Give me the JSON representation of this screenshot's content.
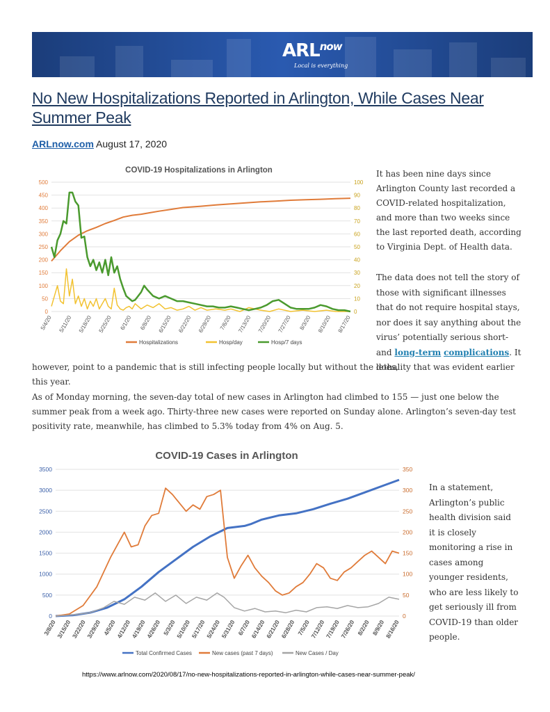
{
  "banner": {
    "logo_arl": "ARL",
    "logo_now": "now",
    "tagline": "Local is everything"
  },
  "article": {
    "title": "No New Hospitalizations Reported in Arlington, While Cases Near Summer Peak",
    "source": "ARLnow.com",
    "date": "August 17, 2020",
    "p1": "It has been nine days since Arlington County last recorded a COVID-related hospitalization, and more than two weeks since the last reported death, according to Virginia Dept. of Health data.",
    "p2_start": "The data does not tell the story of those with significant illnesses that do not require hospital stays, nor does it say anything about the virus’ potentially serious short- and ",
    "p2_link1": "long-term",
    "p2_link2": "complications",
    "p2_mid": ". It does,",
    "p2_cont": "however, point to a pandemic that is still infecting people locally but without the lethality that was evident earlier this year.",
    "p3": "As of Monday morning, the seven-day total of new cases in Arlington had climbed to 155 — just one below the summer peak from a week ago. Thirty-three new cases were reported on Sunday alone. Arlington’s seven-day test positivity rate, meanwhile, has climbed to 5.3% today from 4% on Aug. 5.",
    "p4": "In a statement, Arlington’s public health division said it is closely monitoring a rise in cases among younger residents, who are less likely to get seriously ill from COVID-19 than older people."
  },
  "footer": {
    "url": "https://www.arlnow.com/2020/08/17/no-new-hospitalizations-reported-in-arlington-while-cases-near-summer-peak/"
  },
  "colors": {
    "orange": "#e07b39",
    "yellow": "#f2c230",
    "green": "#4a9a2e",
    "blue": "#4472c4",
    "gray": "#a5a5a5",
    "title_blue": "#1f3a5f"
  },
  "chart_data": [
    {
      "type": "line",
      "title": "COVID-19 Hospitalizations in Arlington",
      "x_ticks": [
        "5/4/20",
        "5/11/20",
        "5/18/20",
        "5/25/20",
        "6/1/20",
        "6/8/20",
        "6/15/20",
        "6/22/20",
        "6/29/20",
        "7/6/20",
        "7/13/20",
        "7/20/20",
        "7/27/20",
        "8/3/20",
        "8/10/20",
        "8/17/20"
      ],
      "ylim_left": [
        0,
        500
      ],
      "ylim_right": [
        0,
        100
      ],
      "y_ticks_left": [
        "0",
        "50",
        "100",
        "150",
        "200",
        "250",
        "300",
        "350",
        "400",
        "450",
        "500"
      ],
      "y_ticks_right": [
        "0",
        "10",
        "20",
        "30",
        "40",
        "50",
        "60",
        "70",
        "80",
        "90",
        "100"
      ],
      "grid": true,
      "legend_position": "bottom",
      "series": [
        {
          "name": "Hospitalizations",
          "axis": "left",
          "color": "#e07b39",
          "x": [
            0,
            3,
            6,
            9,
            12,
            15,
            18,
            21,
            24,
            27,
            30,
            33,
            36,
            40,
            44,
            50,
            55,
            60,
            65,
            70,
            75,
            80,
            85,
            90,
            95,
            100
          ],
          "y": [
            195,
            235,
            270,
            295,
            312,
            325,
            340,
            352,
            365,
            372,
            376,
            382,
            388,
            395,
            402,
            407,
            412,
            416,
            420,
            424,
            427,
            430,
            432,
            434,
            436,
            438
          ]
        },
        {
          "name": "Hosp/day",
          "axis": "right",
          "color": "#f2c230",
          "x": [
            0,
            2,
            3,
            4,
            5,
            6,
            7,
            8,
            9,
            10,
            11,
            12,
            13,
            14,
            15,
            16,
            17,
            18,
            19,
            20,
            21,
            22,
            23,
            24,
            25,
            26,
            27,
            28,
            30,
            32,
            34,
            36,
            38,
            40,
            42,
            44,
            46,
            48,
            50,
            52,
            55,
            58,
            60,
            63,
            66,
            70,
            73,
            76,
            80,
            84,
            88,
            92,
            95,
            98,
            100
          ],
          "y": [
            4,
            20,
            8,
            6,
            33,
            12,
            25,
            6,
            12,
            4,
            10,
            2,
            8,
            4,
            10,
            2,
            6,
            10,
            4,
            2,
            18,
            5,
            2,
            1,
            3,
            4,
            2,
            6,
            2,
            5,
            3,
            6,
            2,
            3,
            1,
            2,
            4,
            1,
            3,
            1,
            2,
            1,
            2,
            0,
            3,
            1,
            0,
            2,
            0,
            1,
            0,
            1,
            0,
            0,
            0
          ]
        },
        {
          "name": "Hosp/7 days",
          "axis": "right",
          "color": "#4a9a2e",
          "x": [
            0,
            1,
            2,
            3,
            4,
            5,
            6,
            7,
            8,
            9,
            10,
            11,
            12,
            13,
            14,
            15,
            16,
            17,
            18,
            19,
            20,
            21,
            22,
            23,
            24,
            25,
            26,
            27,
            28,
            29,
            30,
            31,
            32,
            34,
            36,
            38,
            40,
            42,
            44,
            46,
            48,
            50,
            52,
            54,
            56,
            58,
            60,
            62,
            64,
            66,
            68,
            70,
            72,
            74,
            76,
            78,
            80,
            82,
            84,
            86,
            88,
            90,
            92,
            94,
            96,
            98,
            100
          ],
          "y": [
            50,
            42,
            55,
            60,
            70,
            68,
            92,
            92,
            85,
            82,
            57,
            58,
            42,
            35,
            40,
            32,
            38,
            30,
            40,
            28,
            42,
            30,
            35,
            25,
            18,
            12,
            10,
            8,
            9,
            12,
            15,
            20,
            17,
            12,
            10,
            12,
            10,
            8,
            8,
            7,
            6,
            5,
            4,
            4,
            3,
            3,
            4,
            3,
            2,
            1,
            2,
            3,
            5,
            8,
            9,
            6,
            3,
            2,
            2,
            2,
            3,
            5,
            4,
            2,
            1,
            1,
            0
          ]
        }
      ]
    },
    {
      "type": "line",
      "title": "COVID-19 Cases in Arlington",
      "x_ticks": [
        "3/8/20",
        "3/15/20",
        "3/22/20",
        "3/29/20",
        "4/5/20",
        "4/12/20",
        "4/19/20",
        "4/26/20",
        "5/3/20",
        "5/10/20",
        "5/17/20",
        "5/24/20",
        "5/31/20",
        "6/7/20",
        "6/14/20",
        "6/21/20",
        "6/28/20",
        "7/5/20",
        "7/12/20",
        "7/19/20",
        "7/26/20",
        "8/2/20",
        "8/9/20",
        "8/16/20"
      ],
      "ylim_left": [
        0,
        3500
      ],
      "ylim_right": [
        0,
        350
      ],
      "y_ticks_left": [
        "0",
        "500",
        "1000",
        "1500",
        "2000",
        "2500",
        "3000",
        "3500"
      ],
      "y_ticks_right": [
        "0",
        "50",
        "100",
        "150",
        "200",
        "250",
        "300",
        "350"
      ],
      "grid": true,
      "legend_position": "bottom",
      "series": [
        {
          "name": "Total Confirmed Cases",
          "axis": "left",
          "color": "#4472c4",
          "x": [
            0,
            5,
            10,
            15,
            20,
            25,
            30,
            35,
            40,
            45,
            50,
            55,
            57,
            60,
            65,
            70,
            75,
            80,
            85,
            90,
            95,
            100
          ],
          "y": [
            0,
            20,
            80,
            200,
            400,
            700,
            1050,
            1350,
            1650,
            1900,
            2100,
            2150,
            2200,
            2300,
            2400,
            2450,
            2550,
            2680,
            2800,
            2950,
            3100,
            3250
          ]
        },
        {
          "name": "New cases (past 7 days)",
          "axis": "right",
          "color": "#e07b39",
          "x": [
            0,
            4,
            8,
            12,
            16,
            20,
            22,
            24,
            26,
            28,
            30,
            32,
            34,
            36,
            38,
            40,
            42,
            44,
            46,
            48,
            50,
            52,
            54,
            56,
            58,
            60,
            62,
            64,
            66,
            68,
            70,
            72,
            74,
            76,
            78,
            80,
            82,
            84,
            86,
            88,
            90,
            92,
            94,
            96,
            98,
            100
          ],
          "y": [
            0,
            5,
            25,
            70,
            140,
            200,
            165,
            170,
            215,
            240,
            245,
            305,
            290,
            270,
            250,
            265,
            255,
            285,
            290,
            300,
            140,
            90,
            120,
            145,
            115,
            95,
            80,
            60,
            50,
            55,
            70,
            80,
            100,
            125,
            115,
            90,
            85,
            105,
            115,
            130,
            145,
            155,
            140,
            125,
            155,
            150
          ]
        },
        {
          "name": "New Cases / Day",
          "axis": "right",
          "color": "#a5a5a5",
          "x": [
            0,
            5,
            10,
            14,
            17,
            20,
            23,
            26,
            29,
            32,
            35,
            38,
            41,
            44,
            47,
            49,
            52,
            55,
            58,
            61,
            64,
            67,
            70,
            73,
            76,
            79,
            82,
            85,
            88,
            91,
            94,
            97,
            100
          ],
          "y": [
            0,
            3,
            8,
            20,
            35,
            28,
            45,
            38,
            55,
            35,
            50,
            30,
            45,
            38,
            55,
            45,
            20,
            12,
            18,
            10,
            12,
            8,
            14,
            10,
            20,
            22,
            18,
            25,
            20,
            22,
            30,
            45,
            40
          ]
        }
      ]
    }
  ]
}
